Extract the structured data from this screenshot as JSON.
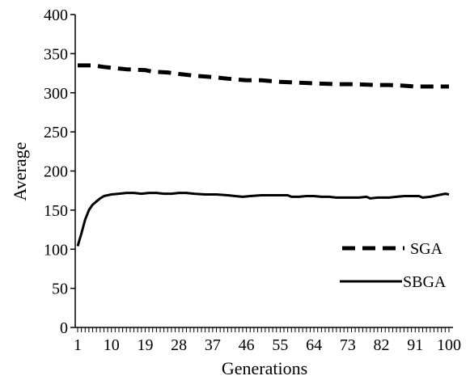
{
  "chart_data": {
    "type": "line",
    "xlabel": "Generations",
    "ylabel": "Average",
    "xlim": [
      1,
      100
    ],
    "ylim": [
      0,
      400
    ],
    "yticks": [
      0,
      50,
      100,
      150,
      200,
      250,
      300,
      350,
      400
    ],
    "xtick_labels": [
      1,
      10,
      19,
      28,
      37,
      46,
      55,
      64,
      73,
      82,
      91,
      100
    ],
    "grid": false,
    "legend_position": "lower-right",
    "series": [
      {
        "name": "SGA",
        "style": "dashed",
        "color": "#000000",
        "points": [
          [
            1,
            335
          ],
          [
            5,
            335
          ],
          [
            8,
            333
          ],
          [
            10,
            332
          ],
          [
            14,
            330
          ],
          [
            19,
            329
          ],
          [
            21,
            327
          ],
          [
            25,
            326
          ],
          [
            28,
            324
          ],
          [
            32,
            322
          ],
          [
            37,
            320
          ],
          [
            41,
            318
          ],
          [
            46,
            316
          ],
          [
            50,
            316
          ],
          [
            55,
            314
          ],
          [
            60,
            313
          ],
          [
            64,
            312
          ],
          [
            70,
            311
          ],
          [
            75,
            311
          ],
          [
            80,
            310
          ],
          [
            84,
            310
          ],
          [
            88,
            309
          ],
          [
            91,
            308
          ],
          [
            95,
            308
          ],
          [
            100,
            308
          ]
        ]
      },
      {
        "name": "SBGA",
        "style": "solid",
        "color": "#000000",
        "points": [
          [
            1,
            104
          ],
          [
            2,
            120
          ],
          [
            3,
            138
          ],
          [
            4,
            150
          ],
          [
            5,
            157
          ],
          [
            6,
            161
          ],
          [
            7,
            165
          ],
          [
            8,
            168
          ],
          [
            10,
            170
          ],
          [
            12,
            171
          ],
          [
            14,
            172
          ],
          [
            16,
            172
          ],
          [
            18,
            171
          ],
          [
            20,
            172
          ],
          [
            22,
            172
          ],
          [
            24,
            171
          ],
          [
            26,
            171
          ],
          [
            28,
            172
          ],
          [
            30,
            172
          ],
          [
            32,
            171
          ],
          [
            35,
            170
          ],
          [
            38,
            170
          ],
          [
            41,
            169
          ],
          [
            43,
            168
          ],
          [
            45,
            167
          ],
          [
            47,
            168
          ],
          [
            50,
            169
          ],
          [
            54,
            169
          ],
          [
            57,
            169
          ],
          [
            58,
            167
          ],
          [
            60,
            167
          ],
          [
            62,
            168
          ],
          [
            64,
            168
          ],
          [
            66,
            167
          ],
          [
            68,
            167
          ],
          [
            70,
            166
          ],
          [
            73,
            166
          ],
          [
            76,
            166
          ],
          [
            78,
            167
          ],
          [
            79,
            165
          ],
          [
            81,
            166
          ],
          [
            84,
            166
          ],
          [
            86,
            167
          ],
          [
            88,
            168
          ],
          [
            90,
            168
          ],
          [
            92,
            168
          ],
          [
            93,
            166
          ],
          [
            95,
            167
          ],
          [
            97,
            169
          ],
          [
            99,
            171
          ],
          [
            100,
            170
          ]
        ]
      }
    ]
  }
}
